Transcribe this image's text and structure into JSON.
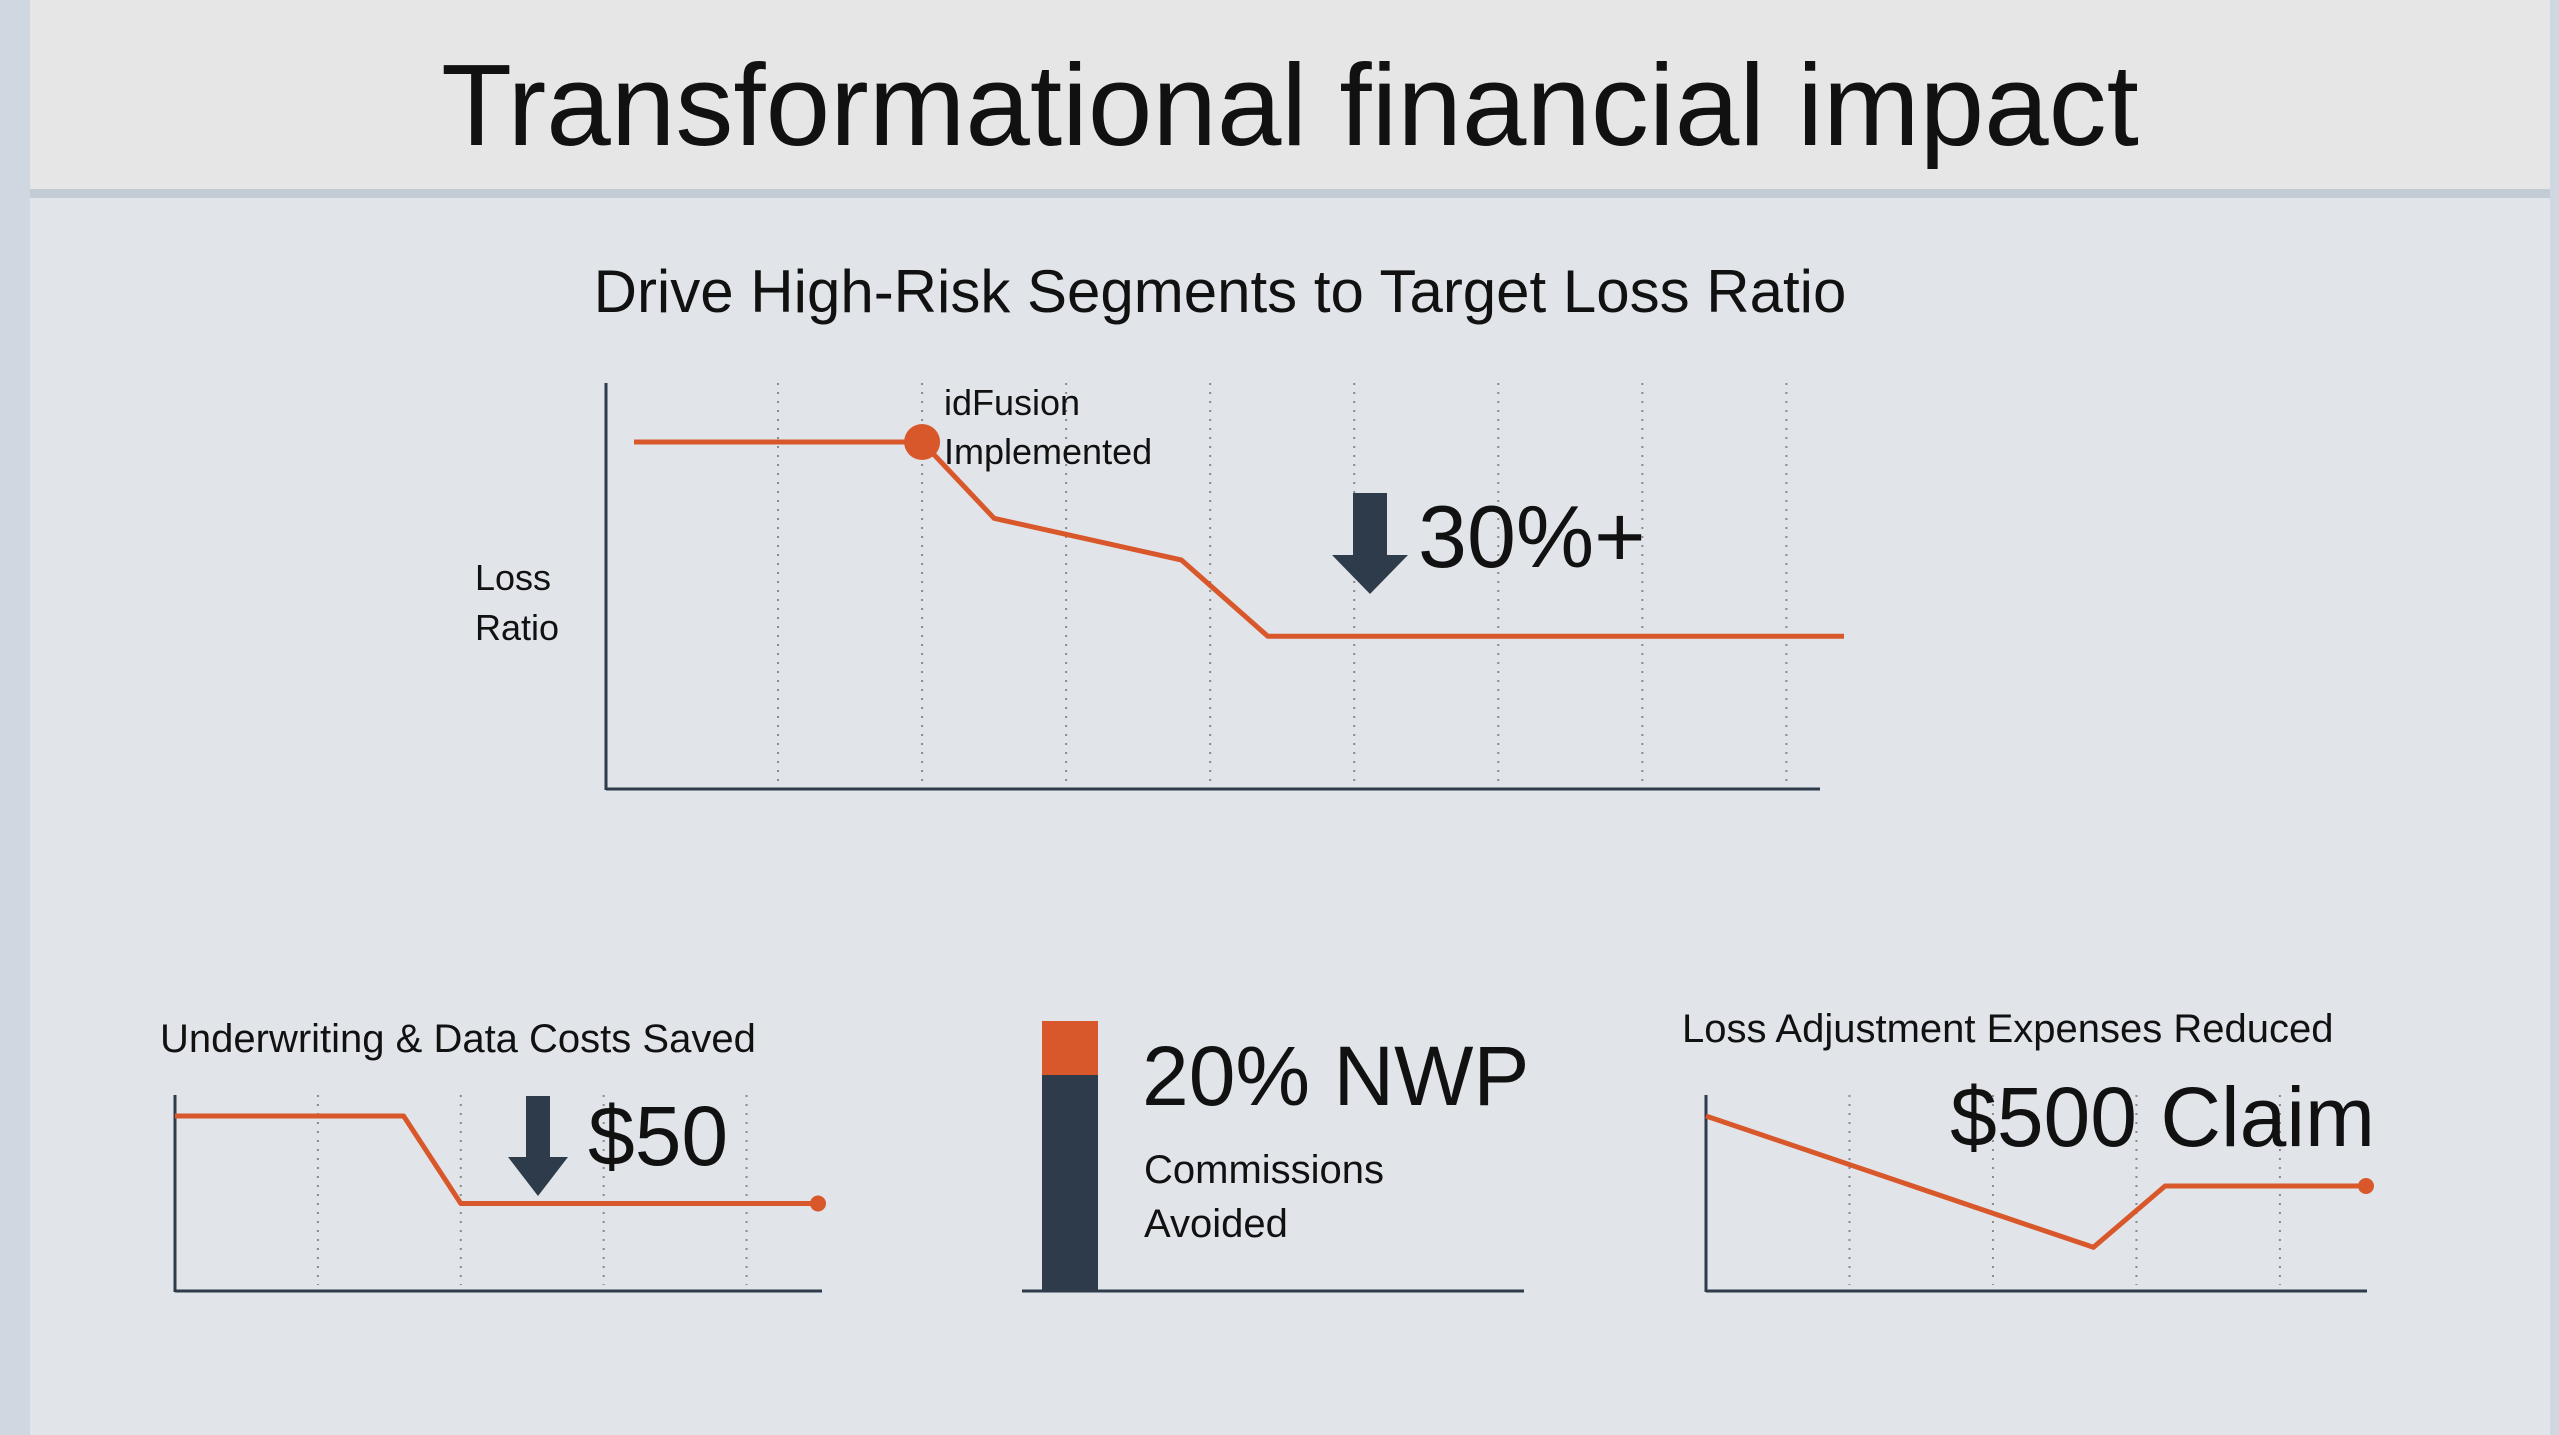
{
  "title": "Transformational financial impact",
  "colors": {
    "accent": "#d9582b",
    "dark": "#2d3b4b",
    "background": "#e1e5ea",
    "title_bar": "#e6e6e6",
    "grid": "#8a8a8a"
  },
  "chart_data": [
    {
      "type": "line",
      "title": "Drive  High-Risk Segments to Target Loss Ratio",
      "ylabel_lines": [
        "Loss",
        "Ratio"
      ],
      "xlabel": "",
      "x": [
        0,
        2,
        2.5,
        3.8,
        4.4,
        8.4
      ],
      "y": [
        100,
        100,
        78,
        66,
        44,
        44
      ],
      "xlim": [
        0,
        8.4
      ],
      "ylim": [
        0,
        117
      ],
      "vgrid": [
        1,
        2,
        3,
        4,
        5,
        6,
        7,
        8
      ],
      "marker": {
        "x": 2,
        "y": 100,
        "label_lines": [
          "idFusion",
          "Implemented"
        ]
      },
      "callout": {
        "text": "30%+",
        "icon": "down-arrow-icon"
      }
    },
    {
      "type": "line",
      "title": "Underwriting & Data Costs  Saved",
      "x": [
        0,
        1.6,
        2,
        4.5
      ],
      "y": [
        100,
        100,
        50,
        50
      ],
      "xlim": [
        0,
        4.5
      ],
      "ylim": [
        0,
        112
      ],
      "vgrid": [
        1,
        2,
        3,
        4
      ],
      "end_marker": true,
      "callout": {
        "text": "$50",
        "icon": "down-arrow-icon"
      }
    },
    {
      "type": "bar",
      "orientation": "vertical-stacked",
      "values": [
        20,
        80
      ],
      "segments": [
        "accent",
        "dark"
      ],
      "headline": "20% NWP",
      "caption_lines": [
        "Commissions",
        "Avoided"
      ]
    },
    {
      "type": "line",
      "title": "Loss Adjustment Expenses Reduced",
      "x": [
        0,
        2.7,
        3.2,
        4.6
      ],
      "y": [
        100,
        25,
        60,
        60
      ],
      "xlim": [
        0,
        4.6
      ],
      "ylim": [
        0,
        112
      ],
      "vgrid": [
        1,
        2,
        3,
        4
      ],
      "end_marker": true,
      "callout": {
        "text": "$500 Claim"
      }
    }
  ]
}
